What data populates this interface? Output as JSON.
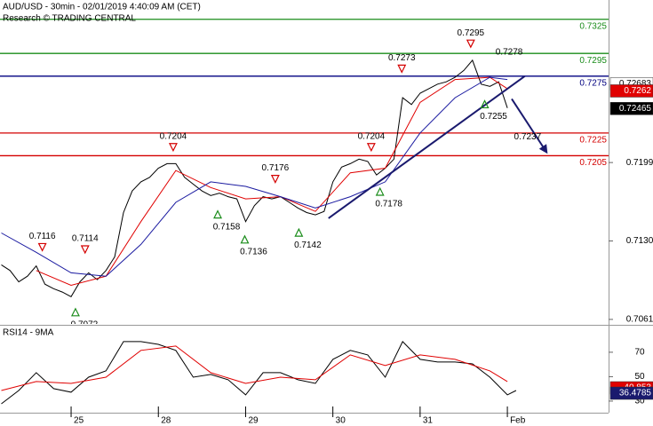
{
  "chart_data": [
    {
      "type": "line",
      "title": "AUD/USD - 30min - 02/01/2019 4:40:09 AM (CET)",
      "subtitle": "Research © TRADING CENTRAL",
      "xlim": [
        -0.815,
        6.16
      ],
      "ylim": [
        0.7057,
        0.7342
      ],
      "yticks": [
        0.7061,
        {
          "value": 0.713,
          "label": "0.7130"
        },
        0.7199
      ],
      "series": [
        {
          "color": "#000000",
          "x": [
            -0.8,
            -0.7,
            -0.6,
            -0.5,
            -0.4,
            -0.3,
            -0.2,
            -0.1,
            0,
            0.1,
            0.2,
            0.3,
            0.4,
            0.5,
            0.6,
            0.7,
            0.8,
            0.9,
            1,
            1.1,
            1.2,
            1.3,
            1.4,
            1.5,
            1.6,
            1.7,
            1.8,
            1.9,
            2,
            2.1,
            2.2,
            2.3,
            2.4,
            2.5,
            2.6,
            2.7,
            2.8,
            2.9,
            3,
            3.1,
            3.2,
            3.3,
            3.4,
            3.5,
            3.6,
            3.7,
            3.8,
            3.9,
            4,
            4.1,
            4.2,
            4.3,
            4.4,
            4.5,
            4.6,
            4.7,
            4.8,
            4.9,
            5
          ],
          "values": [
            0.7109,
            0.7104,
            0.7094,
            0.7099,
            0.7108,
            0.7092,
            0.7088,
            0.7085,
            0.7081,
            0.7094,
            0.7102,
            0.7096,
            0.7104,
            0.7116,
            0.7155,
            0.7174,
            0.7182,
            0.7186,
            0.7194,
            0.7198,
            0.7198,
            0.7186,
            0.718,
            0.7174,
            0.717,
            0.7172,
            0.7169,
            0.7167,
            0.7147,
            0.7161,
            0.7169,
            0.7167,
            0.7169,
            0.7164,
            0.7159,
            0.7155,
            0.7153,
            0.7156,
            0.7182,
            0.7195,
            0.7198,
            0.7202,
            0.72,
            0.7188,
            0.7194,
            0.7202,
            0.7256,
            0.725,
            0.726,
            0.7264,
            0.7268,
            0.727,
            0.7274,
            0.728,
            0.7289,
            0.7268,
            0.7266,
            0.727,
            0.7247
          ]
        },
        {
          "color": "#e00000",
          "x": [
            -0.4,
            0,
            0.4,
            0.8,
            1.2,
            1.6,
            2,
            2.4,
            2.8,
            3.2,
            3.6,
            4,
            4.4,
            4.8,
            5
          ],
          "values": [
            0.7104,
            0.7091,
            0.7099,
            0.7147,
            0.7192,
            0.7177,
            0.7167,
            0.7169,
            0.7156,
            0.719,
            0.7194,
            0.7252,
            0.7272,
            0.7274,
            0.7264
          ]
        },
        {
          "color": "#1a1aa0",
          "x": [
            -0.8,
            -0.4,
            0,
            0.4,
            0.8,
            1.2,
            1.6,
            2,
            2.4,
            2.8,
            3.2,
            3.6,
            4,
            4.4,
            4.8,
            5
          ],
          "values": [
            0.7137,
            0.712,
            0.7102,
            0.7099,
            0.7127,
            0.7164,
            0.7182,
            0.7178,
            0.7169,
            0.7159,
            0.7169,
            0.7182,
            0.7225,
            0.7256,
            0.7274,
            0.7272
          ]
        }
      ],
      "levels": [
        {
          "value": 0.7325,
          "color": "#1a8c1a"
        },
        {
          "value": 0.7295,
          "color": "#1a8c1a"
        },
        {
          "value": 0.7275,
          "color": "#000080"
        },
        {
          "value": 0.7225,
          "color": "#d40000"
        },
        {
          "value": 0.7205,
          "color": "#d40000"
        }
      ],
      "annotations": [
        {
          "x": -0.33,
          "value": 0.7116,
          "kind": "peak",
          "triangle": true
        },
        {
          "x": 0.16,
          "value": 0.7114,
          "kind": "peak",
          "triangle": true
        },
        {
          "x": 0.05,
          "value": 0.7072,
          "kind": "trough",
          "triangle": true
        },
        {
          "x": 1.17,
          "value": 0.7204,
          "kind": "peak",
          "triangle": true
        },
        {
          "x": 1.68,
          "value": 0.7158,
          "kind": "trough",
          "triangle": true
        },
        {
          "x": 1.99,
          "value": 0.7136,
          "kind": "trough",
          "triangle": true
        },
        {
          "x": 2.34,
          "value": 0.7176,
          "kind": "peak",
          "triangle": true
        },
        {
          "x": 2.61,
          "value": 0.7142,
          "kind": "trough",
          "triangle": true
        },
        {
          "x": 3.44,
          "value": 0.7204,
          "kind": "peak",
          "triangle": true
        },
        {
          "x": 3.54,
          "value": 0.7178,
          "kind": "trough",
          "triangle": true
        },
        {
          "x": 3.79,
          "value": 0.7273,
          "kind": "peak",
          "triangle": true
        },
        {
          "x": 4.58,
          "value": 0.7295,
          "kind": "peak",
          "triangle": true
        },
        {
          "x": 5.02,
          "value": 0.7278,
          "kind": "peak",
          "triangle": false
        },
        {
          "x": 4.74,
          "value": 0.7255,
          "kind": "trough",
          "triangle": true
        },
        {
          "x": 5.13,
          "value": 0.7237,
          "kind": "trough",
          "triangle": false
        }
      ],
      "trend_lines": [
        {
          "x": [
            2.95,
            5.2
          ],
          "y": [
            0.715,
            0.7275
          ],
          "color": "#1a1a6e",
          "arrow": false
        },
        {
          "x": [
            5.05,
            5.45
          ],
          "y": [
            0.7255,
            0.7208
          ],
          "color": "#1a1a6e",
          "arrow": true
        }
      ],
      "tags": [
        {
          "value": 0.72683,
          "color": "#ffffff",
          "text_color": "#000000"
        },
        {
          "value": 0.7262,
          "color": "#e00000",
          "text_color": "#ffffff"
        },
        {
          "value": 0.72465,
          "color": "#000000",
          "text_color": "#ffffff"
        }
      ]
    },
    {
      "type": "line",
      "title": "RSI14 - 9MA",
      "xlim": [
        -0.815,
        6.16
      ],
      "ylim": [
        20.5,
        91
      ],
      "yticks": [
        30,
        50,
        70
      ],
      "xticks": [
        {
          "value": 0,
          "label": "25"
        },
        {
          "value": 1,
          "label": "28"
        },
        {
          "value": 2,
          "label": "29"
        },
        {
          "value": 3,
          "label": "30"
        },
        {
          "value": 4,
          "label": "31"
        },
        {
          "value": 5,
          "label": "Feb"
        }
      ],
      "series": [
        {
          "color": "#000000",
          "x": [
            -0.8,
            -0.6,
            -0.4,
            -0.2,
            0,
            0.2,
            0.4,
            0.6,
            0.8,
            1,
            1.2,
            1.4,
            1.6,
            1.8,
            2,
            2.2,
            2.4,
            2.6,
            2.8,
            3,
            3.2,
            3.4,
            3.6,
            3.8,
            4,
            4.2,
            4.4,
            4.6,
            4.8,
            5,
            5.1
          ],
          "values": [
            27.8,
            38.7,
            53.3,
            40.2,
            37.3,
            49.6,
            54.7,
            78.7,
            78.7,
            76.5,
            71.5,
            49.6,
            51.8,
            47.5,
            35.1,
            53.3,
            53.3,
            47.5,
            44.5,
            64.2,
            71.5,
            67.8,
            49.6,
            78.7,
            64.2,
            62,
            62,
            60.5,
            49.6,
            35.1,
            38.7
          ]
        },
        {
          "color": "#e00000",
          "x": [
            -0.8,
            -0.4,
            0,
            0.4,
            0.8,
            1.2,
            1.6,
            2,
            2.4,
            2.8,
            3.2,
            3.6,
            4,
            4.4,
            4.8,
            5
          ],
          "values": [
            38.7,
            46,
            44.5,
            49.6,
            71.5,
            75.1,
            53.3,
            44.5,
            49.6,
            47.5,
            67.8,
            59.1,
            67.8,
            64.2,
            54.7,
            46
          ]
        }
      ],
      "tags": [
        {
          "value": 40.853,
          "color": "#e00000",
          "text_color": "#ffffff"
        },
        {
          "value": 36.4785,
          "color": "#1a1a6e",
          "text_color": "#ffffff"
        }
      ]
    }
  ]
}
